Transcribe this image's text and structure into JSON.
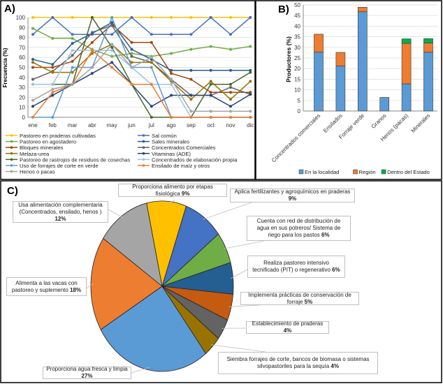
{
  "chart_data": [
    {
      "panel": "A)",
      "type": "line",
      "ylabel": "Frecuencia (%)",
      "ylim": [
        0,
        100
      ],
      "yticks": [
        0,
        10,
        20,
        30,
        40,
        50,
        60,
        70,
        80,
        90,
        100
      ],
      "grid": true,
      "legend": "bottom",
      "categories": [
        "ene",
        "feb",
        "mar",
        "abr",
        "may",
        "jun",
        "jul",
        "ago",
        "sep",
        "oct",
        "nov",
        "dic"
      ],
      "series": [
        {
          "name": "Pastoreo en praderas cultivadas",
          "color": "#FFC000",
          "values": [
            100,
            100,
            100,
            100,
            100,
            100,
            100,
            100,
            100,
            100,
            100,
            100
          ]
        },
        {
          "name": "Sal común",
          "color": "#4472C4",
          "values": [
            83,
            100,
            83,
            83,
            83,
            100,
            83,
            83,
            83,
            100,
            83,
            100
          ]
        },
        {
          "name": "Pastoreo en agostadero",
          "color": "#70AD47",
          "values": [
            89,
            79,
            79,
            68,
            61,
            64,
            61,
            64,
            68,
            71,
            68,
            71
          ]
        },
        {
          "name": "Sales minerales",
          "color": "#255E91",
          "values": [
            58,
            53,
            74,
            84,
            95,
            68,
            58,
            47,
            47,
            47,
            47,
            47
          ]
        },
        {
          "name": "Bloques minerales",
          "color": "#9E480E",
          "values": [
            50,
            50,
            56,
            75,
            93,
            75,
            75,
            44,
            38,
            25,
            25,
            25
          ]
        },
        {
          "name": "Concentrados Comerciales",
          "color": "#636363",
          "values": [
            38,
            46,
            62,
            85,
            92,
            61,
            55,
            38,
            22,
            22,
            30,
            23
          ]
        },
        {
          "name": "Melaza-urea",
          "color": "#997300",
          "values": [
            55,
            45,
            45,
            64,
            73,
            55,
            55,
            36,
            18,
            36,
            18,
            36
          ]
        },
        {
          "name": "Vitaminas (ADE)",
          "color": "#264478",
          "values": [
            11,
            22,
            33,
            44,
            55,
            33,
            11,
            22,
            22,
            22,
            11,
            23
          ]
        },
        {
          "name": "Pastoreo de rastrojos de residuos de cosechas",
          "color": "#43682B",
          "values": [
            33,
            33,
            33,
            100,
            70,
            33,
            0,
            0,
            0,
            33,
            33,
            45
          ]
        },
        {
          "name": "Concentrados de elaboración propia",
          "color": "#9DC3E6",
          "values": [
            33,
            33,
            67,
            67,
            67,
            50,
            33,
            33,
            0,
            0,
            0,
            0
          ]
        },
        {
          "name": "Uso de forrajes de corte en verde",
          "color": "#5B9BD5",
          "values": [
            0,
            0,
            50,
            50,
            100,
            50,
            50,
            0,
            0,
            0,
            0,
            0
          ]
        },
        {
          "name": "Ensilado de maíz y otros",
          "color": "#ED7D31",
          "values": [
            0,
            25,
            33,
            67,
            50,
            33,
            33,
            0,
            0,
            0,
            0,
            0
          ]
        },
        {
          "name": "Henos o pacas",
          "color": "#A5A5A5",
          "values": [
            17,
            28,
            33,
            50,
            73,
            50,
            60,
            38,
            6,
            6,
            6,
            6
          ]
        }
      ]
    },
    {
      "panel": "B)",
      "type": "bar",
      "stacked": true,
      "ylabel": "Productores (%)",
      "ylim": [
        0,
        50
      ],
      "yticks": [
        0,
        5,
        10,
        15,
        20,
        25,
        30,
        35,
        40,
        45,
        50
      ],
      "legend": "bottom",
      "categories": [
        "Concentrados comerciales",
        "Ensilados",
        "Forraje verde",
        "Granos",
        "Henos (pacas)",
        "Minerales"
      ],
      "series": [
        {
          "name": "En la localidad",
          "color": "#5B9BD5",
          "values": [
            27.7,
            21.2,
            46.8,
            6.4,
            12.8,
            27.7
          ]
        },
        {
          "name": "Región",
          "color": "#ED7D31",
          "values": [
            8.5,
            6.4,
            2.1,
            0,
            19.1,
            4.3
          ]
        },
        {
          "name": "Dentro del Estado",
          "color": "#00B050",
          "values": [
            0,
            0,
            0,
            0,
            2.1,
            2.1
          ]
        }
      ]
    },
    {
      "panel": "C)",
      "type": "pie",
      "slices": [
        {
          "label": "Proporciona alimento por etapas fisiológica",
          "pct": "9%",
          "value": 9,
          "color": "#FFC000"
        },
        {
          "label": "Aplica fertilizantes y agroquímicos en praderas",
          "pct": "9%",
          "value": 9,
          "color": "#4472C4"
        },
        {
          "label": "Cuenta con red de distribución de agua en sus potreros/ Sistema de riego para los pastos",
          "pct": "6%",
          "value": 6,
          "color": "#70AD47"
        },
        {
          "label": "Realiza pastoreo intensivo tecnificado (PIT) o regenerativo",
          "pct": "6%",
          "value": 6,
          "color": "#255E91"
        },
        {
          "label": "Implementa prácticas de conservación de forraje",
          "pct": "5%",
          "value": 5,
          "color": "#C55A11"
        },
        {
          "label": "Establecimiento de praderas",
          "pct": "4%",
          "value": 4,
          "color": "#636363"
        },
        {
          "label": "Siembra forrajes de corte, bancos de biomasa o sistemas silvopastoriles para la sequía",
          "pct": "4%",
          "value": 4,
          "color": "#997300"
        },
        {
          "label": "Proporciona agua fresca y limpia",
          "pct": "27%",
          "value": 27,
          "color": "#5B9BD5"
        },
        {
          "label": "Alimenta a las vacas con pastoreo y suplemento",
          "pct": "18%",
          "value": 18,
          "color": "#ED7D31"
        },
        {
          "label": "Usa alimentación complementaria (Concentrados, ensilado, henos )",
          "pct": "12%",
          "value": 12,
          "color": "#A5A5A5"
        }
      ]
    }
  ]
}
